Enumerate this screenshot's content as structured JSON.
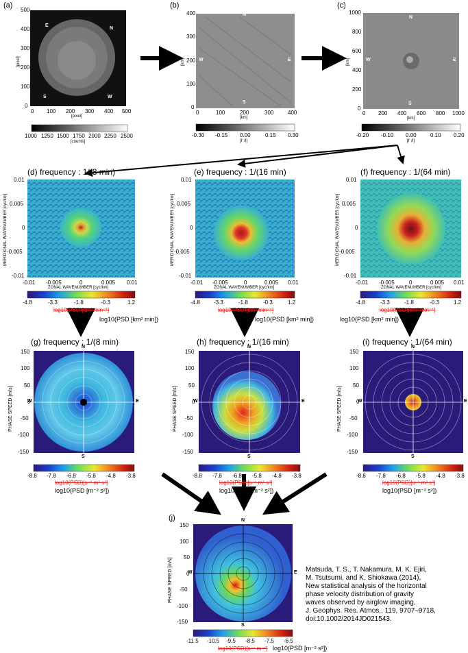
{
  "panels": {
    "a": {
      "label": "(a)",
      "ytick": [
        "0",
        "100",
        "200",
        "300",
        "400",
        "500"
      ],
      "xtick": [
        "0",
        "100",
        "200",
        "300",
        "400",
        "500"
      ],
      "xlabel": "[pixel]",
      "ylabel": "[pixel]",
      "compass": {
        "n": "N",
        "e": "E",
        "s": "S",
        "w": "W"
      },
      "cbar_ticks": [
        "1000",
        "1250",
        "1500",
        "1750",
        "2000",
        "2250",
        "2500"
      ],
      "cbar_unit": "[counts]"
    },
    "b": {
      "label": "(b)",
      "ytick": [
        "0",
        "100",
        "200",
        "300",
        "400"
      ],
      "xtick": [
        "0",
        "100",
        "200",
        "300",
        "400"
      ],
      "xlabel": "[km]",
      "ylabel": "[km]",
      "compass": {
        "n": "N",
        "e": "E",
        "s": "S",
        "w": "W"
      },
      "cbar_ticks": [
        "-0.30",
        "-0.15",
        "0.00",
        "0.15",
        "0.30"
      ],
      "cbar_unit": "[I' /I]"
    },
    "c": {
      "label": "(c)",
      "ytick": [
        "0",
        "200",
        "400",
        "600",
        "800",
        "1000"
      ],
      "xtick": [
        "0",
        "200",
        "400",
        "600",
        "800",
        "1000"
      ],
      "xlabel": "[km]",
      "ylabel": "[km]",
      "compass": {
        "n": "N",
        "e": "E",
        "s": "S",
        "w": "W"
      },
      "cbar_ticks": [
        "-0.20",
        "-0.10",
        "0.00",
        "0.10",
        "0.20"
      ],
      "cbar_unit": "[I' /I]"
    }
  },
  "spectra": [
    {
      "label": "(d)",
      "title": "frequency : 1/(8 min)"
    },
    {
      "label": "(e)",
      "title": "frequency : 1/(16 min)"
    },
    {
      "label": "(f)",
      "title": "frequency : 1/(64 min)"
    }
  ],
  "spectra_axes": {
    "ylabel": "MERIDIONAL WAVENUMBER [cyc/km]",
    "xlabel": "ZONAL WAVENUMBER [cyc/km]",
    "ytick": [
      "0.01",
      "0.005",
      "0",
      "-0.005",
      "-0.01"
    ],
    "xtick": [
      "-0.01",
      "-0.005",
      "0",
      "0.005",
      "0.01"
    ],
    "cbar_ticks": [
      "-4.8",
      "-3.3",
      "-1.8",
      "-0.3",
      "1.2"
    ],
    "old_unit": "log10(PSD)[km² min⁻¹]",
    "new_unit": "log10(PSD [km² min])"
  },
  "polar": [
    {
      "label": "(g)",
      "title": "frequency : 1/(8 min)"
    },
    {
      "label": "(h)",
      "title": "frequency : 1/(16 min)"
    },
    {
      "label": "(i)",
      "title": "frequency : 1/(64 min)"
    }
  ],
  "polar_axes": {
    "ylabel": "PHASE SPEED [m/s]",
    "ytick": [
      "150",
      "100",
      "50",
      "0",
      "-50",
      "-100",
      "-150"
    ],
    "xtick": [
      "-150",
      "-100",
      "-50",
      "0",
      "50",
      "100",
      "150"
    ],
    "compass": {
      "n": "N",
      "e": "E",
      "s": "S",
      "w": "W"
    },
    "cbar_ticks": [
      "-8.8",
      "-7.8",
      "-6.8",
      "-5.8",
      "-4.8",
      "-3.8"
    ],
    "old_unit": "log10(PSD)[s⁻¹ m² s²]",
    "new_unit": "log10(PSD [m⁻² s²])"
  },
  "final": {
    "label": "(j)",
    "ylabel": "PHASE SPEED [m/s]",
    "ytick": [
      "150",
      "100",
      "50",
      "0",
      "-50",
      "-100",
      "-150"
    ],
    "xtick": [
      "-150",
      "-100",
      "-50",
      "0",
      "50",
      "100",
      "150"
    ],
    "compass": {
      "n": "N",
      "e": "E",
      "s": "S",
      "w": "W"
    },
    "cbar_ticks": [
      "-11.5",
      "-10.5",
      "-9.5",
      "-8.5",
      "-7.5",
      "-6.5"
    ],
    "old_unit": "log10(PSD)[s⁻¹ m⁻¹]",
    "new_unit": "log10(PSD [m⁻² s²])"
  },
  "citation": [
    "Matsuda, T. S., T. Nakamura, M. K. Ejiri,",
    "M. Tsutsumi, and K. Shiokawa (2014),",
    "New statistical analysis of the horizontal",
    "phase velocity distribution of gravity",
    "waves observed by airglow imaging,",
    "J. Geophys. Res. Atmos., 119, 9707–9718,",
    "doi:10.1002/2014JD021543."
  ],
  "colors": {
    "jet_low": "#2a1a7a",
    "jet_mid": "#6fdc5a",
    "jet_high": "#b01010"
  }
}
